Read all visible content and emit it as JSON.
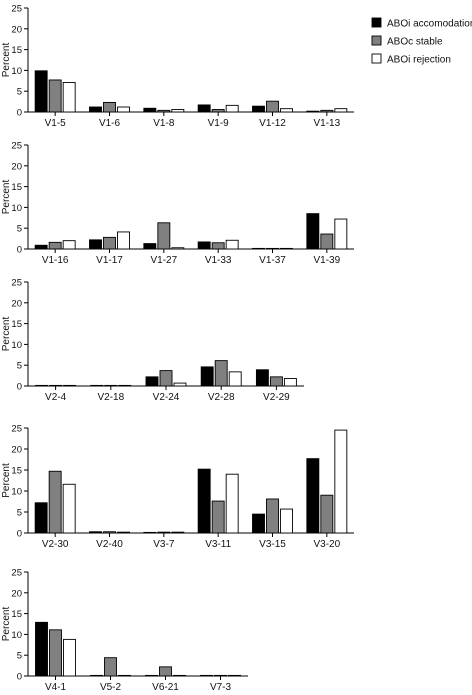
{
  "legend": [
    {
      "label": "ABOi accomodation",
      "color": "#000000"
    },
    {
      "label": "ABOc stable",
      "color": "#808080"
    },
    {
      "label": "ABOi rejection",
      "color": "#ffffff"
    }
  ],
  "chart_data": [
    {
      "type": "bar",
      "ylabel": "Percent",
      "ylim": [
        0,
        25
      ],
      "yticks": [
        0,
        5,
        10,
        15,
        20,
        25
      ],
      "categories": [
        "V1-5",
        "V1-6",
        "V1-8",
        "V1-9",
        "V1-12",
        "V1-13"
      ],
      "series": [
        {
          "name": "ABOi accomodation",
          "values": [
            9.9,
            1.2,
            0.9,
            1.7,
            1.4,
            0.2
          ]
        },
        {
          "name": "ABOc stable",
          "values": [
            7.7,
            2.3,
            0.4,
            0.6,
            2.6,
            0.4
          ]
        },
        {
          "name": "ABOi rejection",
          "values": [
            7.1,
            1.2,
            0.6,
            1.6,
            0.8,
            0.8
          ]
        }
      ]
    },
    {
      "type": "bar",
      "ylabel": "Percent",
      "ylim": [
        0,
        25
      ],
      "yticks": [
        0,
        5,
        10,
        15,
        20,
        25
      ],
      "categories": [
        "V1-16",
        "V1-17",
        "V1-27",
        "V1-33",
        "V1-37",
        "V1-39"
      ],
      "series": [
        {
          "name": "ABOi accomodation",
          "values": [
            0.9,
            2.2,
            1.3,
            1.7,
            0.1,
            8.5
          ]
        },
        {
          "name": "ABOc stable",
          "values": [
            1.6,
            2.8,
            6.3,
            1.5,
            0.1,
            3.6
          ]
        },
        {
          "name": "ABOi rejection",
          "values": [
            2.0,
            4.1,
            0.3,
            2.1,
            0.1,
            7.2
          ]
        }
      ]
    },
    {
      "type": "bar",
      "ylabel": "Percent",
      "ylim": [
        0,
        25
      ],
      "yticks": [
        0,
        5,
        10,
        15,
        20,
        25
      ],
      "categories": [
        "V2-4",
        "V2-18",
        "V2-24",
        "V2-28",
        "V2-29"
      ],
      "series": [
        {
          "name": "ABOi accomodation",
          "values": [
            0.05,
            0.05,
            2.2,
            4.6,
            3.9
          ]
        },
        {
          "name": "ABOc stable",
          "values": [
            0.05,
            0.05,
            3.7,
            6.1,
            2.2
          ]
        },
        {
          "name": "ABOi rejection",
          "values": [
            0.05,
            0.05,
            0.7,
            3.4,
            1.8
          ]
        }
      ]
    },
    {
      "type": "bar",
      "ylabel": "Percent",
      "ylim": [
        0,
        25
      ],
      "yticks": [
        0,
        5,
        10,
        15,
        20,
        25
      ],
      "categories": [
        "V2-30",
        "V2-40",
        "V3-7",
        "V3-11",
        "V3-15",
        "V3-20"
      ],
      "series": [
        {
          "name": "ABOi accomodation",
          "values": [
            7.2,
            0.3,
            0.1,
            15.2,
            4.5,
            17.7
          ]
        },
        {
          "name": "ABOc stable",
          "values": [
            14.7,
            0.3,
            0.2,
            7.6,
            8.1,
            9.0
          ]
        },
        {
          "name": "ABOi rejection",
          "values": [
            11.6,
            0.2,
            0.2,
            14.0,
            5.7,
            24.5
          ]
        }
      ]
    },
    {
      "type": "bar",
      "ylabel": "Percent",
      "ylim": [
        0,
        25
      ],
      "yticks": [
        0,
        5,
        10,
        15,
        20,
        25
      ],
      "categories": [
        "V4-1",
        "V5-2",
        "V6-21",
        "V7-3"
      ],
      "series": [
        {
          "name": "ABOi accomodation",
          "values": [
            12.9,
            0.05,
            0.1,
            0.05
          ]
        },
        {
          "name": "ABOc stable",
          "values": [
            11.1,
            4.4,
            2.2,
            0.05
          ]
        },
        {
          "name": "ABOi rejection",
          "values": [
            8.8,
            0.05,
            0.05,
            0.05
          ]
        }
      ]
    }
  ]
}
